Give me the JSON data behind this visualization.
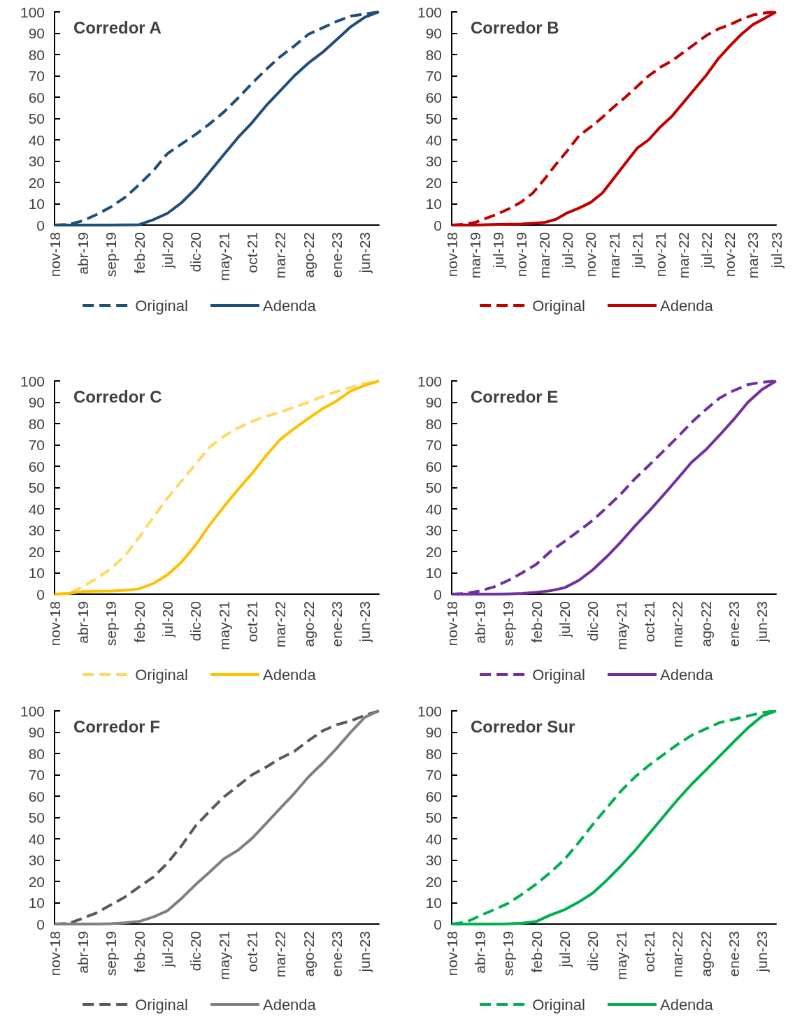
{
  "chart_data": [
    {
      "type": "line",
      "title": "Corredor A",
      "categories": [
        "nov-18",
        null,
        "abr-19",
        null,
        "sep-19",
        null,
        "feb-20",
        null,
        "jul-20",
        null,
        "dic-20",
        null,
        "may-21",
        null,
        "oct-21",
        null,
        "mar-22",
        null,
        "ago-22",
        null,
        "ene-23",
        null,
        "jun-23",
        null
      ],
      "ylim": [
        0,
        100
      ],
      "yticks": [
        0,
        10,
        20,
        30,
        40,
        50,
        60,
        70,
        80,
        90,
        100
      ],
      "grid": false,
      "legend": "bottom",
      "marker": "none",
      "series": [
        {
          "name": "Original",
          "color": "#1f4e79",
          "line_style": "dashed",
          "values": [
            0,
            0.3,
            2,
            5,
            8.5,
            13,
            19,
            25.5,
            33.5,
            38,
            42.5,
            47.5,
            53,
            59.5,
            66.5,
            73,
            79,
            84,
            89.5,
            92.5,
            95.5,
            98,
            99,
            100
          ]
        },
        {
          "name": "Adenda",
          "color": "#1f4e79",
          "line_style": "solid",
          "values": [
            0,
            0,
            0,
            0,
            0,
            0.1,
            0.2,
            2.5,
            5.5,
            10.5,
            17,
            25,
            33,
            41,
            48,
            56,
            63,
            70,
            76,
            81,
            87,
            93,
            97.5,
            100
          ]
        }
      ]
    },
    {
      "type": "line",
      "title": "Corredor B",
      "categories": [
        "nov-18",
        null,
        "mar-19",
        null,
        "jul-19",
        null,
        "nov-19",
        null,
        "mar-20",
        null,
        "jul-20",
        null,
        "nov-20",
        null,
        "mar-21",
        null,
        "jul-21",
        null,
        "nov-21",
        null,
        "mar-22",
        null,
        "jul-22",
        null,
        "nov-22",
        null,
        "mar-23",
        null,
        "jul-23"
      ],
      "ylim": [
        0,
        100
      ],
      "yticks": [
        0,
        10,
        20,
        30,
        40,
        50,
        60,
        70,
        80,
        90,
        100
      ],
      "grid": false,
      "legend": "bottom",
      "marker": "none",
      "series": [
        {
          "name": "Original",
          "color": "#c00000",
          "line_style": "dashed",
          "values": [
            0,
            0.3,
            1.2,
            3.2,
            5.3,
            7.8,
            10.8,
            15,
            21.5,
            28.5,
            35,
            42,
            46,
            50.5,
            55.5,
            60,
            65,
            70,
            74,
            77,
            81,
            85,
            89,
            92,
            94,
            96.5,
            98.5,
            99.5,
            100
          ]
        },
        {
          "name": "Adenda",
          "color": "#c00000",
          "line_style": "solid",
          "values": [
            0,
            0,
            0,
            0.2,
            0.3,
            0.4,
            0.5,
            0.8,
            1.2,
            2.7,
            5.8,
            8,
            10.6,
            15,
            22,
            29,
            36,
            40,
            46,
            51,
            57.5,
            64,
            70.5,
            78,
            84,
            89.5,
            94,
            97,
            100
          ]
        }
      ]
    },
    {
      "type": "line",
      "title": "Corredor C",
      "categories": [
        "nov-18",
        null,
        "abr-19",
        null,
        "sep-19",
        null,
        "feb-20",
        null,
        "jul-20",
        null,
        "dic-20",
        null,
        "may-21",
        null,
        "oct-21",
        null,
        "mar-22",
        null,
        "ago-22",
        null,
        "ene-23",
        null,
        "jun-23",
        null
      ],
      "ylim": [
        0,
        100
      ],
      "yticks": [
        0,
        10,
        20,
        30,
        40,
        50,
        60,
        70,
        80,
        90,
        100
      ],
      "grid": false,
      "legend": "bottom",
      "marker": "none",
      "series": [
        {
          "name": "Original",
          "color": "#ffd966",
          "line_style": "dashed",
          "values": [
            0,
            0.3,
            3.5,
            7.4,
            12,
            18,
            26.7,
            36,
            45,
            53,
            61,
            69,
            74,
            78,
            81,
            83.4,
            85.3,
            87.7,
            90,
            92.7,
            95,
            97,
            98.8,
            100
          ]
        },
        {
          "name": "Adenda",
          "color": "#ffc000",
          "line_style": "solid",
          "values": [
            0,
            0.3,
            1.2,
            1.4,
            1.5,
            1.8,
            2.5,
            5,
            9,
            15,
            23,
            32.5,
            41,
            49,
            56.6,
            65,
            72.5,
            77.7,
            82.4,
            87,
            90.6,
            95.3,
            97.9,
            100
          ]
        }
      ]
    },
    {
      "type": "line",
      "title": "Corredor E",
      "categories": [
        "nov-18",
        null,
        "abr-19",
        null,
        "sep-19",
        null,
        "feb-20",
        null,
        "jul-20",
        null,
        "dic-20",
        null,
        "may-21",
        null,
        "oct-21",
        null,
        "mar-22",
        null,
        "ago-22",
        null,
        "ene-23",
        null,
        "jun-23",
        null
      ],
      "ylim": [
        0,
        100
      ],
      "yticks": [
        0,
        10,
        20,
        30,
        40,
        50,
        60,
        70,
        80,
        90,
        100
      ],
      "grid": false,
      "legend": "bottom",
      "marker": "none",
      "series": [
        {
          "name": "Original",
          "color": "#7030a0",
          "line_style": "dashed",
          "values": [
            0,
            0.3,
            1.5,
            3.4,
            6.4,
            10,
            14,
            20,
            24.7,
            29.6,
            34.6,
            40.7,
            47,
            54.2,
            60.5,
            67,
            73.6,
            80.5,
            86.5,
            92,
            95.5,
            98.3,
            99.4,
            100
          ]
        },
        {
          "name": "Adenda",
          "color": "#7030a0",
          "line_style": "solid",
          "values": [
            0,
            0,
            0,
            0,
            0.1,
            0.3,
            0.8,
            1.6,
            3,
            6.4,
            11.4,
            17.6,
            24.5,
            32,
            39,
            46.4,
            54,
            61.8,
            67.6,
            74.6,
            82,
            90,
            96,
            100
          ]
        }
      ]
    },
    {
      "type": "line",
      "title": "Corredor F",
      "categories": [
        "nov-18",
        null,
        "abr-19",
        null,
        "sep-19",
        null,
        "feb-20",
        null,
        "jul-20",
        null,
        "dic-20",
        null,
        "may-21",
        null,
        "oct-21",
        null,
        "mar-22",
        null,
        "ago-22",
        null,
        "ene-23",
        null,
        "jun-23",
        null
      ],
      "ylim": [
        0,
        100
      ],
      "yticks": [
        0,
        10,
        20,
        30,
        40,
        50,
        60,
        70,
        80,
        90,
        100
      ],
      "grid": false,
      "legend": "bottom",
      "marker": "none",
      "series": [
        {
          "name": "Original",
          "color": "#595959",
          "line_style": "dashed",
          "values": [
            0,
            0.3,
            2.7,
            5.3,
            9,
            12.7,
            17.4,
            22,
            28.5,
            36.7,
            46,
            53,
            59.6,
            64.8,
            70,
            73.6,
            77.7,
            81,
            86,
            90.6,
            93.5,
            95.3,
            97.9,
            100
          ]
        },
        {
          "name": "Adenda",
          "color": "#808080",
          "line_style": "solid",
          "values": [
            0,
            0,
            0,
            0,
            0.2,
            0.6,
            1.2,
            3.3,
            6.2,
            12,
            18.5,
            24.4,
            30.6,
            34.6,
            40.2,
            47.2,
            54.3,
            61.3,
            69,
            75.4,
            82.4,
            90,
            97,
            100
          ]
        }
      ]
    },
    {
      "type": "line",
      "title": "Corredor Sur",
      "categories": [
        "nov-18",
        null,
        "abr-19",
        null,
        "sep-19",
        null,
        "feb-20",
        null,
        "jul-20",
        null,
        "dic-20",
        null,
        "may-21",
        null,
        "oct-21",
        null,
        "mar-22",
        null,
        "ago-22",
        null,
        "ene-23",
        null,
        "jun-23",
        null
      ],
      "ylim": [
        0,
        100
      ],
      "yticks": [
        0,
        10,
        20,
        30,
        40,
        50,
        60,
        70,
        80,
        90,
        100
      ],
      "grid": false,
      "legend": "bottom",
      "marker": "none",
      "series": [
        {
          "name": "Original",
          "color": "#00b050",
          "line_style": "dashed",
          "values": [
            0,
            0.8,
            3.9,
            6.7,
            9.7,
            14,
            18.8,
            24.2,
            30.3,
            38.2,
            46.7,
            54.5,
            62.4,
            69,
            74.5,
            79.4,
            84.2,
            88.5,
            91.5,
            94.5,
            96,
            97.6,
            99.2,
            100
          ]
        },
        {
          "name": "Adenda",
          "color": "#00b050",
          "line_style": "solid",
          "values": [
            0,
            0,
            0,
            0,
            0.1,
            0.4,
            1.2,
            4.2,
            6.7,
            10.3,
            14.5,
            20.6,
            27.3,
            34.5,
            42.4,
            50.3,
            58.2,
            65.5,
            72.1,
            78.8,
            85.5,
            92,
            97.5,
            100
          ]
        }
      ]
    }
  ]
}
